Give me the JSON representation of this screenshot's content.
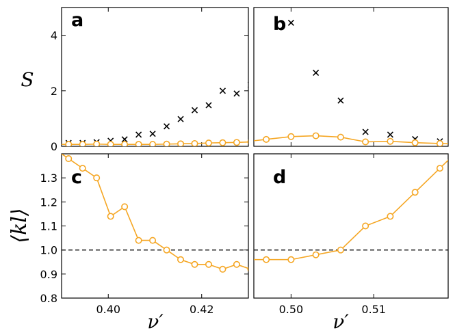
{
  "chart_data": [
    {
      "panel": "a",
      "type": "scatter",
      "xlim": [
        0.39,
        0.43
      ],
      "ylim": [
        0,
        5
      ],
      "yticks": [
        0,
        2,
        4
      ],
      "ytick_labels": [
        "0",
        "2",
        "4"
      ],
      "ylabel": "S",
      "series": [
        {
          "name": "crosses",
          "marker": "x",
          "color": "#000000",
          "x": [
            0.3915,
            0.3945,
            0.3975,
            0.4005,
            0.4035,
            0.4065,
            0.4095,
            0.4125,
            0.4155,
            0.4185,
            0.4215,
            0.4245,
            0.4275,
            0.4305
          ],
          "y": [
            0.12,
            0.12,
            0.15,
            0.2,
            0.25,
            0.42,
            0.45,
            0.72,
            0.98,
            1.3,
            1.48,
            2.0,
            1.9,
            2.22
          ]
        },
        {
          "name": "circles",
          "marker": "o",
          "color": "#f5a623",
          "x": [
            0.3915,
            0.3945,
            0.3975,
            0.4005,
            0.4035,
            0.4065,
            0.4095,
            0.4125,
            0.4155,
            0.4185,
            0.4215,
            0.4245,
            0.4275,
            0.4305
          ],
          "y": [
            0.07,
            0.07,
            0.08,
            0.07,
            0.07,
            0.07,
            0.07,
            0.08,
            0.09,
            0.1,
            0.12,
            0.13,
            0.14,
            0.16
          ]
        }
      ]
    },
    {
      "panel": "b",
      "type": "scatter",
      "xlim": [
        0.4955,
        0.519
      ],
      "ylim": [
        0,
        5
      ],
      "series": [
        {
          "name": "crosses",
          "marker": "x",
          "color": "#000000",
          "x": [
            0.5,
            0.503,
            0.506,
            0.509,
            0.512,
            0.515,
            0.518
          ],
          "y": [
            4.45,
            2.65,
            1.65,
            0.52,
            0.42,
            0.26,
            0.18
          ]
        },
        {
          "name": "circles",
          "marker": "o",
          "color": "#f5a623",
          "x": [
            0.497,
            0.5,
            0.503,
            0.506,
            0.509,
            0.512,
            0.515,
            0.518
          ],
          "y": [
            0.25,
            0.35,
            0.38,
            0.33,
            0.16,
            0.18,
            0.13,
            0.1
          ]
        }
      ]
    },
    {
      "panel": "c",
      "type": "line",
      "xlim": [
        0.39,
        0.43
      ],
      "ylim": [
        0.8,
        1.4
      ],
      "xticks": [
        0.4,
        0.42
      ],
      "xtick_labels": [
        "0.40",
        "0.42"
      ],
      "yticks": [
        0.8,
        0.9,
        1.0,
        1.1,
        1.2,
        1.3
      ],
      "ytick_labels": [
        "0.8",
        "0.9",
        "1.0",
        "1.1",
        "1.2",
        "1.3"
      ],
      "xlabel": "ν′",
      "ylabel": "⟨kl⟩",
      "reference_line": 1.0,
      "series": [
        {
          "name": "circles",
          "marker": "o",
          "color": "#f5a623",
          "x": [
            0.3915,
            0.3945,
            0.3975,
            0.4005,
            0.4035,
            0.4065,
            0.4095,
            0.4125,
            0.4155,
            0.4185,
            0.4215,
            0.4245,
            0.4275,
            0.4305
          ],
          "y": [
            1.38,
            1.34,
            1.3,
            1.14,
            1.18,
            1.04,
            1.04,
            1.0,
            0.96,
            0.94,
            0.94,
            0.92,
            0.94,
            0.92
          ]
        }
      ]
    },
    {
      "panel": "d",
      "type": "line",
      "xlim": [
        0.4955,
        0.519
      ],
      "ylim": [
        0.8,
        1.4
      ],
      "xticks": [
        0.5,
        0.51
      ],
      "xtick_labels": [
        "0.50",
        "0.51"
      ],
      "xlabel": "ν′",
      "reference_line": 1.0,
      "series": [
        {
          "name": "circles",
          "marker": "o",
          "color": "#f5a623",
          "x": [
            0.497,
            0.5,
            0.503,
            0.506,
            0.509,
            0.512,
            0.515,
            0.518
          ],
          "y": [
            0.96,
            0.96,
            0.98,
            1.0,
            1.1,
            1.14,
            1.24,
            1.34
          ]
        }
      ]
    }
  ]
}
